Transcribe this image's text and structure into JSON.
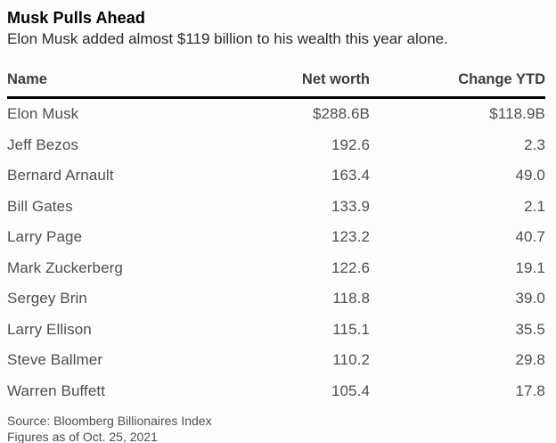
{
  "header": {
    "title": "Musk Pulls Ahead",
    "subtitle": "Elon Musk added almost $119 billion to his wealth this year alone."
  },
  "table": {
    "columns": [
      "Name",
      "Net worth",
      "Change YTD"
    ],
    "rows": [
      {
        "name": "Elon Musk",
        "net_worth": "$288.6B",
        "change_ytd": "$118.9B"
      },
      {
        "name": "Jeff Bezos",
        "net_worth": "192.6",
        "change_ytd": "2.3"
      },
      {
        "name": "Bernard Arnault",
        "net_worth": "163.4",
        "change_ytd": "49.0"
      },
      {
        "name": "Bill Gates",
        "net_worth": "133.9",
        "change_ytd": "2.1"
      },
      {
        "name": "Larry Page",
        "net_worth": "123.2",
        "change_ytd": "40.7"
      },
      {
        "name": "Mark Zuckerberg",
        "net_worth": "122.6",
        "change_ytd": "19.1"
      },
      {
        "name": "Sergey Brin",
        "net_worth": "118.8",
        "change_ytd": "39.0"
      },
      {
        "name": "Larry Ellison",
        "net_worth": "115.1",
        "change_ytd": "35.5"
      },
      {
        "name": "Steve Ballmer",
        "net_worth": "110.2",
        "change_ytd": "29.8"
      },
      {
        "name": "Warren Buffett",
        "net_worth": "105.4",
        "change_ytd": "17.8"
      }
    ]
  },
  "footer": {
    "source": "Source: Bloomberg Billionaires Index",
    "as_of": "Figures as of Oct. 25, 2021"
  },
  "colors": {
    "background": "#fdfdfd",
    "title_text": "#000000",
    "subtitle_text": "#2b2b2b",
    "header_text": "#3d3d3d",
    "row_text": "#4e4e4e",
    "header_rule": "#000000"
  },
  "chart_data": {
    "type": "table",
    "title": "Musk Pulls Ahead",
    "subtitle": "Elon Musk added almost $119 billion to his wealth this year alone.",
    "columns": [
      "Name",
      "Net worth",
      "Change YTD"
    ],
    "value_unit": "$ billions",
    "rows": [
      [
        "Elon Musk",
        288.6,
        118.9
      ],
      [
        "Jeff Bezos",
        192.6,
        2.3
      ],
      [
        "Bernard Arnault",
        163.4,
        49.0
      ],
      [
        "Bill Gates",
        133.9,
        2.1
      ],
      [
        "Larry Page",
        123.2,
        40.7
      ],
      [
        "Mark Zuckerberg",
        122.6,
        19.1
      ],
      [
        "Sergey Brin",
        118.8,
        39.0
      ],
      [
        "Larry Ellison",
        115.1,
        35.5
      ],
      [
        "Steve Ballmer",
        110.2,
        29.8
      ],
      [
        "Warren Buffett",
        105.4,
        17.8
      ]
    ],
    "source": "Source: Bloomberg Billionaires Index",
    "as_of": "Figures as of Oct. 25, 2021"
  }
}
